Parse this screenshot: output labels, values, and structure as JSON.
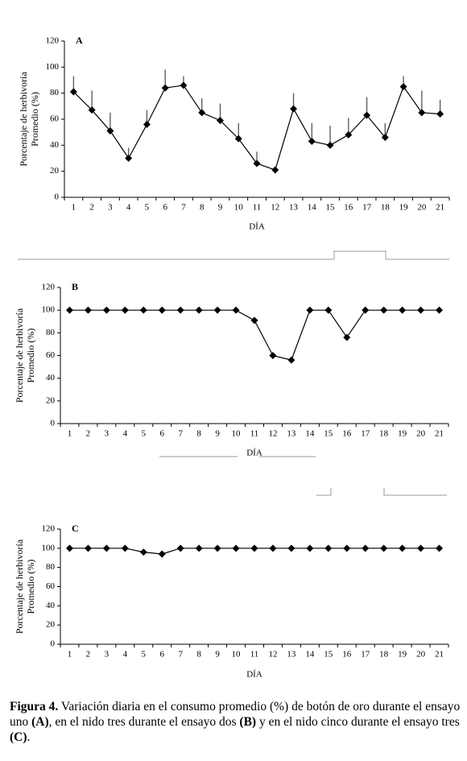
{
  "chart_data": [
    {
      "type": "line",
      "panel": "A",
      "xlabel": "DÍA",
      "ylabel": [
        "Porcentaje de herbivoría",
        "Promedio (%)"
      ],
      "categories": [
        "1",
        "2",
        "3",
        "4",
        "5",
        "6",
        "7",
        "8",
        "9",
        "10",
        "11",
        "12",
        "13",
        "14",
        "15",
        "16",
        "17",
        "18",
        "19",
        "20",
        "21"
      ],
      "values": [
        81,
        67,
        51,
        30,
        56,
        84,
        86,
        65,
        59,
        45,
        26,
        21,
        68,
        43,
        40,
        48,
        63,
        46,
        85,
        65,
        64
      ],
      "errors": [
        12,
        15,
        14,
        8,
        11,
        14,
        7,
        11,
        13,
        12,
        9,
        2,
        12,
        14,
        15,
        13,
        14,
        11,
        8,
        17,
        11
      ],
      "color": "#000000",
      "ylim": [
        0,
        120
      ],
      "yticks": [
        0,
        20,
        40,
        60,
        80,
        100,
        120
      ]
    },
    {
      "type": "line",
      "panel": "B",
      "xlabel": "DÍA",
      "ylabel": [
        "Porcentaje de herbivoría",
        "Promedio (%)"
      ],
      "categories": [
        "1",
        "2",
        "3",
        "4",
        "5",
        "6",
        "7",
        "8",
        "9",
        "10",
        "11",
        "12",
        "13",
        "14",
        "15",
        "16",
        "17",
        "18",
        "19",
        "20",
        "21"
      ],
      "values": [
        100,
        100,
        100,
        100,
        100,
        100,
        100,
        100,
        100,
        100,
        91,
        60,
        56,
        100,
        100,
        76,
        100,
        100,
        100,
        100,
        100
      ],
      "color": "#000000",
      "ylim": [
        0,
        120
      ],
      "yticks": [
        0,
        20,
        40,
        60,
        80,
        100,
        120
      ]
    },
    {
      "type": "line",
      "panel": "C",
      "xlabel": "DÍA",
      "ylabel": [
        "Porcentaje de herbivoría",
        "Promedio (%)"
      ],
      "categories": [
        "1",
        "2",
        "3",
        "4",
        "5",
        "6",
        "7",
        "8",
        "9",
        "10",
        "11",
        "12",
        "13",
        "14",
        "15",
        "16",
        "17",
        "18",
        "19",
        "20",
        "21"
      ],
      "values": [
        100,
        100,
        100,
        100,
        96,
        94,
        100,
        100,
        100,
        100,
        100,
        100,
        100,
        100,
        100,
        100,
        100,
        100,
        100,
        100,
        100
      ],
      "color": "#000000",
      "ylim": [
        0,
        120
      ],
      "yticks": [
        0,
        20,
        40,
        60,
        80,
        100,
        120
      ]
    }
  ],
  "caption": {
    "parts": [
      "Figura 4.",
      " Variación diaria en el consumo promedio (%) de botón de oro durante el ensayo uno ",
      "(A)",
      ", en el nido tres durante el ensayo dos ",
      "(B)",
      " y en el nido cinco durante el ensayo tres ",
      "(C)",
      "."
    ]
  }
}
